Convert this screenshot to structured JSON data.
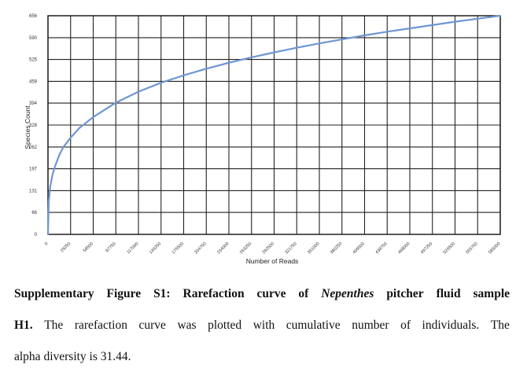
{
  "chart_data": {
    "type": "line",
    "xlabel": "Number of Reads",
    "ylabel": "Species Count",
    "xlim": [
      0,
      585000
    ],
    "ylim": [
      0,
      656
    ],
    "x_ticks": [
      0,
      29250,
      58500,
      87750,
      117000,
      146250,
      175500,
      204750,
      234000,
      263250,
      292500,
      321750,
      351000,
      380250,
      409500,
      438750,
      468000,
      497250,
      526500,
      555750,
      585000
    ],
    "y_ticks": [
      0,
      66,
      131,
      197,
      262,
      328,
      394,
      459,
      525,
      590,
      656
    ],
    "grid": true,
    "color": "#6f96d2",
    "series": [
      {
        "name": "H1",
        "x": [
          0,
          1000,
          3000,
          6000,
          10000,
          15000,
          20000,
          29250,
          40000,
          58500,
          87750,
          117000,
          146250,
          175500,
          204750,
          234000,
          263250,
          292500,
          321750,
          351000,
          380250,
          409500,
          438750,
          468000,
          497250,
          526500,
          555750,
          585000
        ],
        "y": [
          0,
          100,
          145,
          180,
          210,
          240,
          262,
          290,
          318,
          352,
          395,
          428,
          455,
          477,
          497,
          515,
          531,
          546,
          560,
          573,
          585,
          597,
          608,
          618,
          628,
          638,
          647,
          656
        ]
      }
    ]
  },
  "caption": {
    "line1_w1": "Supplementary",
    "line1_w2": "Figure",
    "line1_w3": "S1:",
    "line1_w4": "Rarefaction",
    "line1_w5": "curve",
    "line1_w6": "of",
    "line1_w7": "Nepenthes",
    "line1_w8": "pitcher",
    "line1_w9": "fluid",
    "line1_w10": "sample",
    "line2_w1": "H1.",
    "line2_w2": "The",
    "line2_w3": "rarefaction",
    "line2_w4": "curve",
    "line2_w5": "was",
    "line2_w6": "plotted",
    "line2_w7": "with",
    "line2_w8": "cumulative",
    "line2_w9": "number",
    "line2_w10": "of",
    "line2_w11": "individuals.",
    "line2_w12": "The",
    "line3": "alpha diversity is 31.44."
  }
}
